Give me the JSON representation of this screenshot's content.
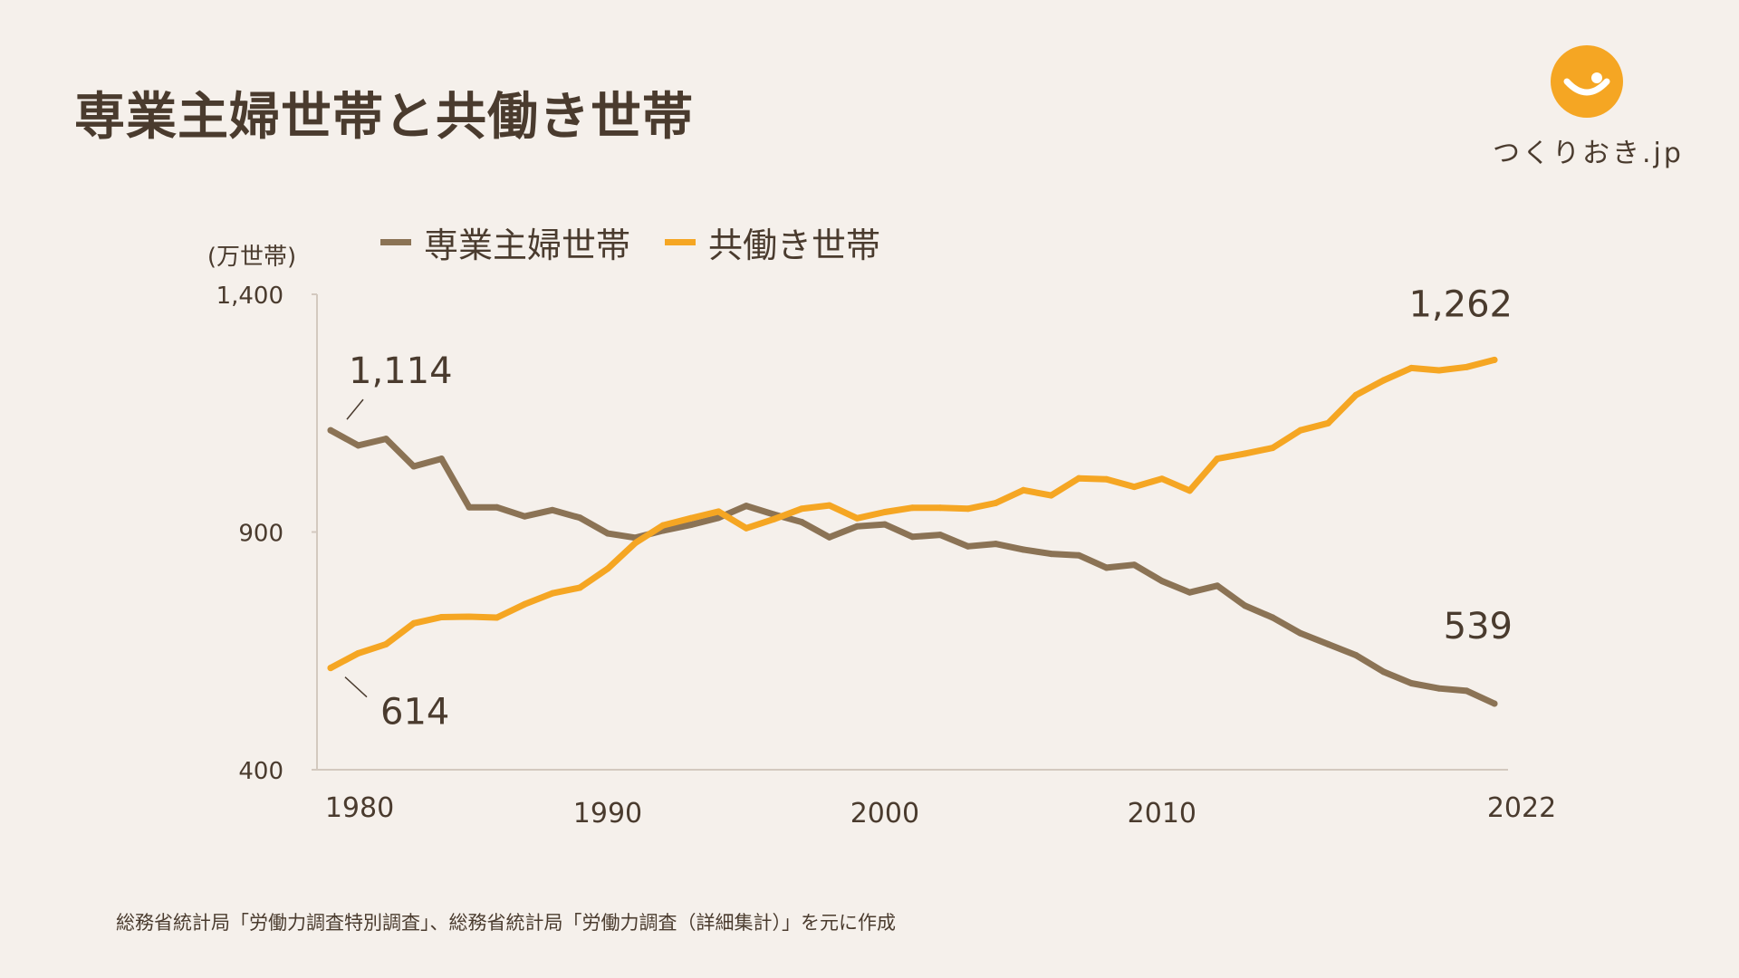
{
  "title": "専業主婦世帯と共働き世帯",
  "logo": {
    "text": "つくりおき.jp",
    "icon": "smile-face-icon",
    "color": "#f5a623"
  },
  "legend": [
    {
      "label": "専業主婦世帯",
      "color": "#8b7355"
    },
    {
      "label": "共働き世帯",
      "color": "#f5a623"
    }
  ],
  "source_note": "総務省統計局「労働力調査特別調査」、総務省統計局「労働力調査（詳細集計）」を元に作成",
  "chart_data": {
    "type": "line",
    "title": "専業主婦世帯と共働き世帯",
    "ylabel": "(万世帯)",
    "xlabel": "",
    "ylim": [
      400,
      1400
    ],
    "xlim": [
      1980,
      2022
    ],
    "y_ticks": [
      400,
      900,
      1400
    ],
    "y_tick_labels": [
      "400",
      "900",
      "1,400"
    ],
    "x_tick_labels": [
      {
        "year": 1980,
        "label": "1980"
      },
      {
        "year": 1990,
        "label": "1990"
      },
      {
        "year": 2000,
        "label": "2000"
      },
      {
        "year": 2010,
        "label": "2010"
      },
      {
        "year": 2022,
        "label": "2022"
      }
    ],
    "x": [
      1980,
      1981,
      1982,
      1983,
      1984,
      1985,
      1986,
      1987,
      1988,
      1989,
      1990,
      1991,
      1992,
      1993,
      1994,
      1995,
      1996,
      1997,
      1998,
      1999,
      2000,
      2001,
      2002,
      2003,
      2004,
      2005,
      2006,
      2007,
      2008,
      2009,
      2010,
      2011,
      2012,
      2013,
      2014,
      2015,
      2016,
      2017,
      2018,
      2019,
      2020,
      2021,
      2022
    ],
    "series": [
      {
        "name": "専業主婦世帯",
        "color": "#8b7355",
        "values": [
          1114,
          1082,
          1096,
          1038,
          1054,
          952,
          952,
          933,
          946,
          930,
          897,
          888,
          903,
          915,
          930,
          955,
          937,
          921,
          889,
          912,
          916,
          890,
          894,
          870,
          875,
          863,
          854,
          851,
          825,
          831,
          797,
          773,
          787,
          745,
          720,
          687,
          664,
          641,
          606,
          582,
          571,
          566,
          539
        ]
      },
      {
        "name": "共働き世帯",
        "color": "#f5a623",
        "values": [
          614,
          645,
          664,
          708,
          721,
          722,
          720,
          748,
          771,
          783,
          823,
          877,
          914,
          929,
          943,
          908,
          927,
          949,
          956,
          929,
          942,
          951,
          951,
          949,
          961,
          988,
          977,
          1013,
          1011,
          995,
          1012,
          987,
          1054,
          1065,
          1077,
          1114,
          1129,
          1188,
          1219,
          1245,
          1240,
          1247,
          1262
        ]
      }
    ],
    "annotations": [
      {
        "series": "専業主婦世帯",
        "year": 1980,
        "text": "1,114"
      },
      {
        "series": "共働き世帯",
        "year": 1980,
        "text": "614"
      },
      {
        "series": "共働き世帯",
        "year": 2022,
        "text": "1,262"
      },
      {
        "series": "専業主婦世帯",
        "year": 2022,
        "text": "539"
      }
    ],
    "grid": false
  }
}
